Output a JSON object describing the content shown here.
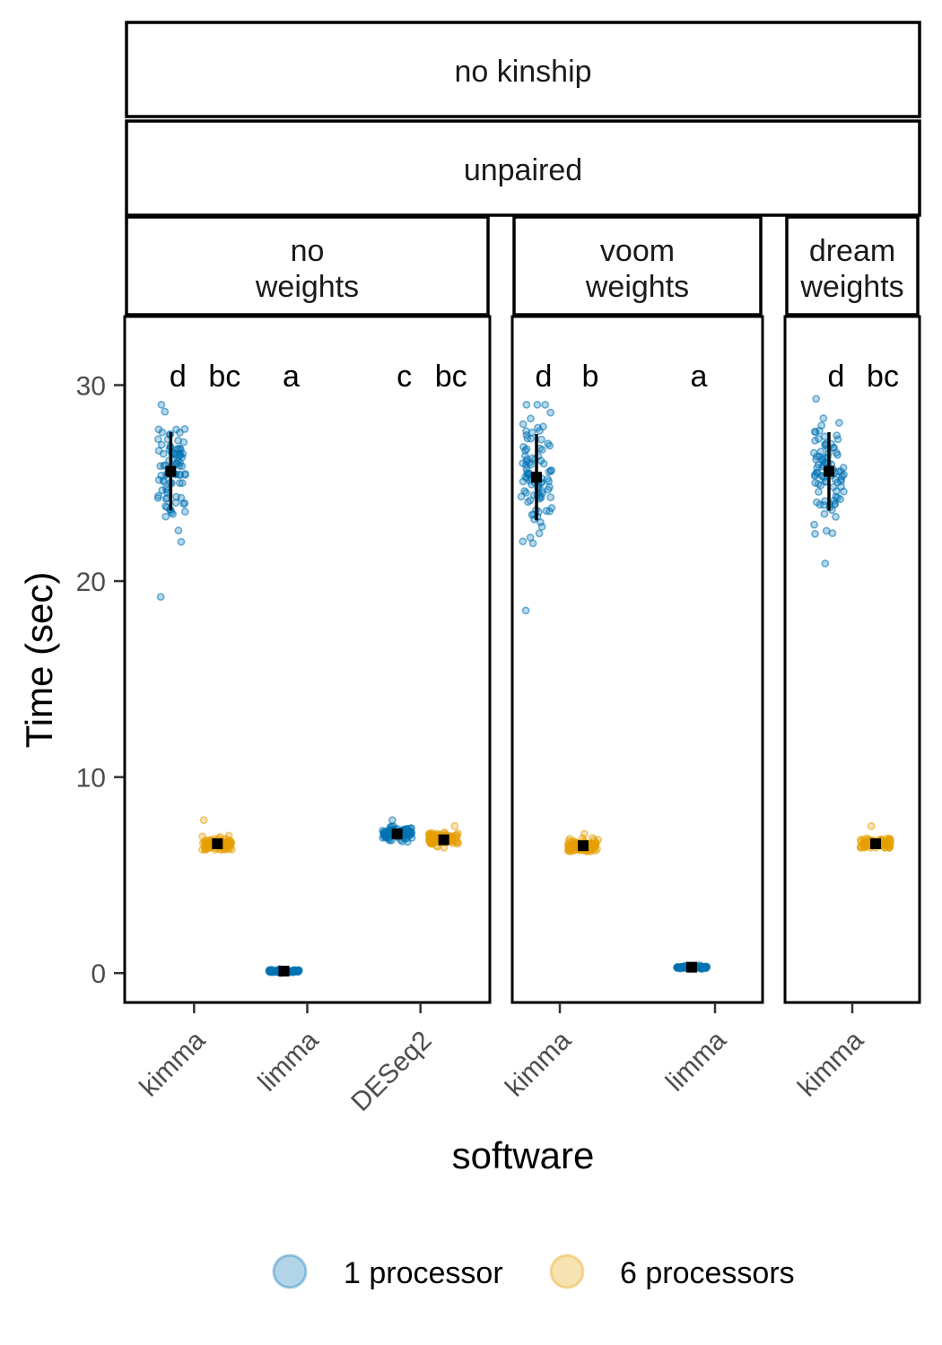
{
  "chart_data": {
    "type": "scatter",
    "strips": {
      "top": "no kinship",
      "middle": "unpaired"
    },
    "xlabel": "software",
    "ylabel": "Time (sec)",
    "ylim": [
      -1.5,
      33.5
    ],
    "yticks": [
      0,
      10,
      20,
      30
    ],
    "grid": false,
    "legend_position": "bottom",
    "colors": {
      "1 processor": "#0072B2",
      "6 processors": "#E69F00"
    },
    "legend": [
      {
        "label": "1 processor",
        "color": "#0072B2"
      },
      {
        "label": "6 processors",
        "color": "#E69F00"
      }
    ],
    "panels": [
      {
        "strip": [
          "no",
          "weights"
        ],
        "categories": [
          "kimma",
          "limma",
          "DESeq2"
        ],
        "groups": [
          {
            "software": "kimma",
            "processors": "1 processor",
            "mean": 25.6,
            "sd": 2.0,
            "min": 19.2,
            "max": 29.0,
            "letter": "d"
          },
          {
            "software": "kimma",
            "processors": "6 processors",
            "mean": 6.6,
            "sd": 0.25,
            "min": 6.3,
            "max": 7.8,
            "letter": "bc"
          },
          {
            "software": "limma",
            "processors": "1 processor",
            "mean": 0.1,
            "sd": 0.05,
            "min": 0.0,
            "max": 0.2,
            "letter": "a"
          },
          {
            "software": "DESeq2",
            "processors": "1 processor",
            "mean": 7.1,
            "sd": 0.25,
            "min": 6.7,
            "max": 7.8,
            "letter": "c"
          },
          {
            "software": "DESeq2",
            "processors": "6 processors",
            "mean": 6.8,
            "sd": 0.25,
            "min": 6.4,
            "max": 7.5,
            "letter": "bc"
          }
        ]
      },
      {
        "strip": [
          "voom",
          "weights"
        ],
        "categories": [
          "kimma",
          "limma"
        ],
        "groups": [
          {
            "software": "kimma",
            "processors": "1 processor",
            "mean": 25.3,
            "sd": 2.2,
            "min": 18.5,
            "max": 29.0,
            "letter": "d"
          },
          {
            "software": "kimma",
            "processors": "6 processors",
            "mean": 6.5,
            "sd": 0.2,
            "min": 6.2,
            "max": 7.1,
            "letter": "b"
          },
          {
            "software": "limma",
            "processors": "1 processor",
            "mean": 0.3,
            "sd": 0.05,
            "min": 0.2,
            "max": 0.4,
            "letter": "a"
          }
        ]
      },
      {
        "strip": [
          "dream",
          "weights"
        ],
        "categories": [
          "kimma"
        ],
        "groups": [
          {
            "software": "kimma",
            "processors": "1 processor",
            "mean": 25.6,
            "sd": 2.0,
            "min": 20.9,
            "max": 29.3,
            "letter": "d"
          },
          {
            "software": "kimma",
            "processors": "6 processors",
            "mean": 6.6,
            "sd": 0.2,
            "min": 6.4,
            "max": 7.5,
            "letter": "bc"
          }
        ]
      }
    ]
  }
}
